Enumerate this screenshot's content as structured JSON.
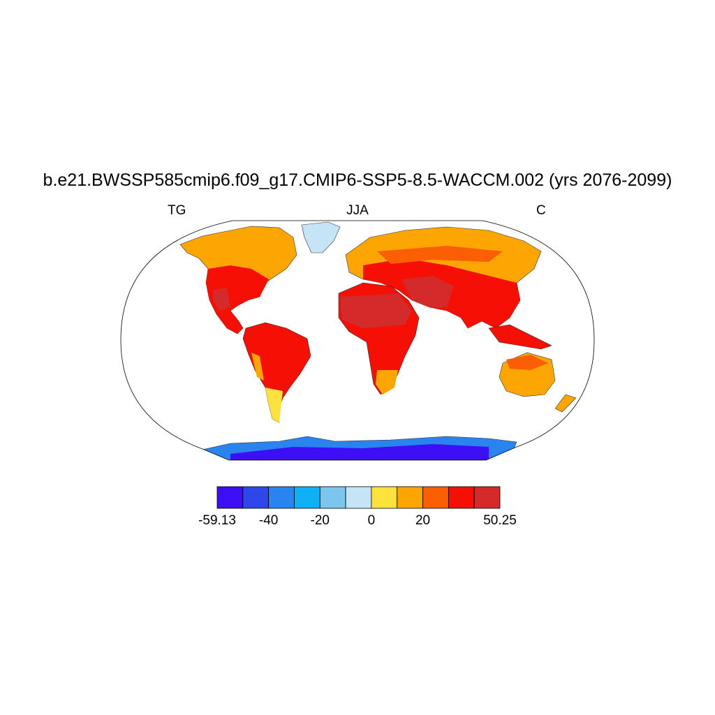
{
  "title": "b.e21.BWSSP585cmip6.f09_g17.CMIP6-SSP5-8.5-WACCM.002 (yrs 2076-2099)",
  "subtitle_left": "TG",
  "subtitle_center": "JJA",
  "subtitle_right": "C",
  "colorbar": {
    "colors": [
      "#3d0ff5",
      "#2f47e8",
      "#2a84ef",
      "#0fb0f5",
      "#7ac6ee",
      "#c5e4f6",
      "#fde13d",
      "#fca503",
      "#fc5e03",
      "#f50f05",
      "#d42a2a"
    ],
    "labels": [
      "-59.13",
      "-40",
      "-20",
      "0",
      "20",
      "50.25"
    ],
    "label_values": [
      -59.13,
      -40,
      -20,
      0,
      20,
      50.25
    ],
    "min": -59.13,
    "max": 50.25
  },
  "land_colors": {
    "greenland": "#c5e4f6",
    "antarctica_outer": "#2a84ef",
    "antarctica_inner": "#3d0ff5",
    "boreal": "#fca503",
    "temperate": "#fc5e03",
    "hot": "#f50f05",
    "very_hot": "#d42a2a",
    "cool": "#fde13d"
  }
}
